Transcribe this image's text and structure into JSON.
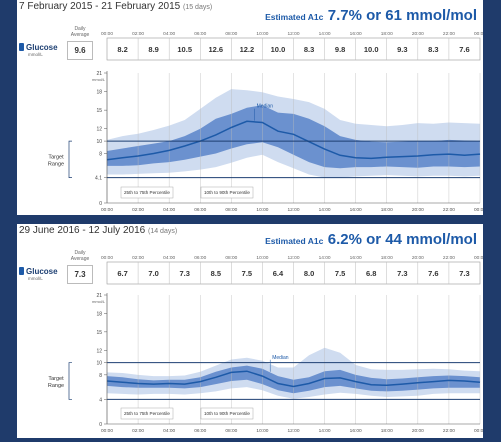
{
  "colors": {
    "background": "#1f3b6b",
    "band_outer": "#cfdcf0",
    "band_inner": "#6b91cf",
    "median": "#1d5aa8",
    "target_line": "#1d3f72",
    "a1c": "#1d5aa8"
  },
  "panels": [
    {
      "title": "7 February 2015 - 21 February 2015",
      "days": "(15 days)",
      "a1c_label": "Estimated A1c",
      "a1c_value": "7.7% or 61 mmol/mol",
      "glucose_label": "Glucose",
      "unit": "mmol/L",
      "daily_avg_label": "Daily Average",
      "daily_avg": "9.6",
      "median_label": "Median",
      "target_label": "Target Range",
      "legend_inner": "25th to 75th Percentile",
      "legend_outer": "10th to 90th Percentile"
    },
    {
      "title": "29 June 2016 - 12 July 2016",
      "days": "(14 days)",
      "a1c_label": "Estimated A1c",
      "a1c_value": "6.2% or 44 mmol/mol",
      "glucose_label": "Glucose",
      "unit": "mmol/L",
      "daily_avg_label": "Daily Average",
      "daily_avg": "7.3",
      "median_label": "Median",
      "target_label": "Target Range",
      "legend_inner": "25th to 75th Percentile",
      "legend_outer": "10th to 90th Percentile"
    }
  ],
  "chart_data": [
    {
      "type": "area",
      "title": "7 February 2015 - 21 February 2015",
      "ylabel": "mmol/L",
      "x": [
        "00:00",
        "01:00",
        "02:00",
        "03:00",
        "04:00",
        "05:00",
        "06:00",
        "07:00",
        "08:00",
        "09:00",
        "10:00",
        "11:00",
        "12:00",
        "13:00",
        "14:00",
        "15:00",
        "16:00",
        "17:00",
        "18:00",
        "19:00",
        "20:00",
        "21:00",
        "22:00",
        "23:00",
        "24:00"
      ],
      "x_ticks": [
        "00:00",
        "02:00",
        "04:00",
        "06:00",
        "08:00",
        "10:00",
        "12:00",
        "14:00",
        "16:00",
        "18:00",
        "20:00",
        "22:00",
        "00:00"
      ],
      "ylim": [
        0,
        21
      ],
      "y_ticks": [
        21,
        18,
        15,
        12,
        10,
        8,
        4.1,
        0
      ],
      "target_range": [
        4.1,
        10
      ],
      "hourly_averages": [
        "8.2",
        "8.9",
        "10.5",
        "12.6",
        "12.2",
        "10.0",
        "8.3",
        "9.8",
        "10.0",
        "9.3",
        "8.3",
        "7.6"
      ],
      "series": [
        {
          "name": "Median",
          "values": [
            7.0,
            7.3,
            7.6,
            8.0,
            8.5,
            9.2,
            10.0,
            11.0,
            12.2,
            13.2,
            13.0,
            11.6,
            11.1,
            9.9,
            8.7,
            7.7,
            7.3,
            7.2,
            7.4,
            7.5,
            7.6,
            7.8,
            7.9,
            7.7,
            7.9
          ]
        },
        {
          "name": "25th to 75th Percentile",
          "low": [
            6.0,
            6.0,
            6.1,
            6.4,
            6.6,
            7.0,
            7.5,
            8.0,
            8.8,
            9.5,
            9.8,
            9.0,
            7.8,
            6.6,
            5.8,
            5.6,
            5.8,
            5.8,
            5.9,
            5.8,
            5.7,
            5.9,
            5.9,
            5.8,
            5.9
          ],
          "high": [
            8.4,
            8.8,
            9.2,
            9.6,
            10.0,
            10.8,
            12.0,
            13.6,
            14.4,
            15.4,
            15.8,
            14.6,
            14.4,
            13.6,
            12.4,
            10.8,
            10.2,
            9.9,
            9.8,
            9.9,
            10.0,
            10.0,
            10.2,
            10.1,
            10.0
          ]
        },
        {
          "name": "10th to 90th Percentile",
          "low": [
            4.6,
            4.6,
            4.7,
            4.8,
            4.9,
            5.1,
            5.4,
            5.8,
            6.5,
            7.3,
            7.8,
            6.6,
            5.6,
            4.6,
            4.1,
            4.1,
            4.3,
            4.4,
            4.5,
            4.4,
            4.3,
            4.4,
            4.4,
            4.3,
            4.4
          ],
          "high": [
            10.2,
            10.8,
            11.2,
            11.8,
            12.5,
            13.4,
            15.2,
            17.0,
            18.4,
            18.2,
            17.9,
            17.2,
            16.8,
            16.3,
            15.2,
            13.4,
            12.8,
            12.6,
            12.4,
            12.6,
            12.9,
            12.8,
            13.0,
            12.9,
            12.8
          ]
        }
      ]
    },
    {
      "type": "area",
      "title": "29 June 2016 - 12 July 2016",
      "ylabel": "mmol/L",
      "x": [
        "00:00",
        "01:00",
        "02:00",
        "03:00",
        "04:00",
        "05:00",
        "06:00",
        "07:00",
        "08:00",
        "09:00",
        "10:00",
        "11:00",
        "12:00",
        "13:00",
        "14:00",
        "15:00",
        "16:00",
        "17:00",
        "18:00",
        "19:00",
        "20:00",
        "21:00",
        "22:00",
        "23:00",
        "24:00"
      ],
      "x_ticks": [
        "00:00",
        "02:00",
        "04:00",
        "06:00",
        "08:00",
        "10:00",
        "12:00",
        "14:00",
        "16:00",
        "18:00",
        "20:00",
        "22:00",
        "00:00"
      ],
      "ylim": [
        0,
        21
      ],
      "y_ticks": [
        21,
        18,
        15,
        12,
        10,
        8,
        4,
        0
      ],
      "target_range": [
        4,
        10
      ],
      "hourly_averages": [
        "6.7",
        "7.0",
        "7.3",
        "8.5",
        "7.5",
        "6.4",
        "8.0",
        "7.5",
        "6.8",
        "7.3",
        "7.6",
        "7.3"
      ],
      "series": [
        {
          "name": "Median",
          "values": [
            7.0,
            6.8,
            6.6,
            6.5,
            6.6,
            6.5,
            6.9,
            7.6,
            8.4,
            8.6,
            7.8,
            6.6,
            6.1,
            6.6,
            7.4,
            7.5,
            6.9,
            6.4,
            6.3,
            6.5,
            6.7,
            6.9,
            7.1,
            7.0,
            6.8
          ]
        },
        {
          "name": "25th to 75th Percentile",
          "low": [
            6.2,
            6.0,
            5.9,
            5.9,
            5.9,
            5.8,
            6.0,
            6.5,
            7.0,
            7.2,
            6.5,
            5.5,
            5.0,
            5.4,
            6.0,
            6.2,
            5.8,
            5.4,
            5.3,
            5.4,
            5.6,
            5.8,
            5.9,
            5.9,
            5.9
          ],
          "high": [
            7.8,
            7.6,
            7.3,
            7.1,
            7.2,
            7.2,
            7.6,
            8.5,
            9.2,
            9.5,
            9.0,
            7.8,
            7.2,
            7.6,
            8.6,
            8.8,
            8.0,
            7.5,
            7.3,
            7.4,
            7.6,
            7.8,
            7.9,
            7.8,
            7.6
          ]
        },
        {
          "name": "10th to 90th Percentile",
          "low": [
            5.0,
            4.9,
            4.8,
            4.9,
            4.9,
            4.8,
            5.0,
            5.3,
            5.8,
            6.0,
            5.5,
            4.6,
            4.1,
            4.4,
            4.8,
            5.1,
            4.9,
            4.6,
            4.4,
            4.5,
            4.6,
            4.9,
            5.0,
            5.0,
            5.0
          ],
          "high": [
            8.4,
            8.3,
            8.0,
            7.8,
            7.8,
            7.9,
            8.5,
            9.5,
            10.5,
            10.8,
            10.3,
            9.2,
            9.2,
            11.2,
            12.4,
            11.6,
            9.6,
            8.9,
            8.8,
            8.8,
            8.9,
            9.0,
            8.9,
            8.7,
            8.6
          ]
        }
      ]
    }
  ]
}
